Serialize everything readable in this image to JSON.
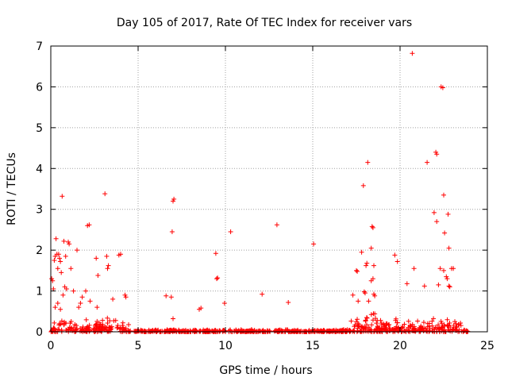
{
  "chart_data": {
    "type": "scatter",
    "title": "Day 105 of 2017, Rate Of TEC Index for receiver vars",
    "xlabel": "GPS time / hours",
    "ylabel": "ROTI / TECUs",
    "xlim": [
      0,
      25
    ],
    "ylim": [
      0,
      7
    ],
    "xticks": [
      "0",
      "5",
      "10",
      "15",
      "20",
      "25"
    ],
    "yticks": [
      "0",
      "1",
      "2",
      "3",
      "4",
      "5",
      "6",
      "7"
    ],
    "grid": true,
    "marker": "+",
    "marker_color": "#ff0000",
    "baseline_band": {
      "x_range": [
        0,
        23.9
      ],
      "typical_max": 0.1
    },
    "points": [
      [
        0.05,
        1.3
      ],
      [
        0.1,
        1.25
      ],
      [
        0.15,
        1.05
      ],
      [
        0.2,
        1.75
      ],
      [
        0.25,
        1.85
      ],
      [
        0.3,
        2.28
      ],
      [
        0.35,
        1.9
      ],
      [
        0.4,
        1.55
      ],
      [
        0.45,
        1.9
      ],
      [
        0.5,
        1.8
      ],
      [
        0.55,
        1.72
      ],
      [
        0.6,
        1.45
      ],
      [
        0.65,
        3.32
      ],
      [
        0.7,
        0.9
      ],
      [
        0.75,
        2.22
      ],
      [
        0.8,
        1.1
      ],
      [
        0.85,
        1.85
      ],
      [
        0.9,
        1.05
      ],
      [
        1.0,
        2.2
      ],
      [
        1.05,
        2.15
      ],
      [
        1.15,
        1.55
      ],
      [
        0.25,
        0.6
      ],
      [
        0.4,
        0.7
      ],
      [
        0.55,
        0.55
      ],
      [
        1.3,
        1.0
      ],
      [
        1.5,
        2.0
      ],
      [
        1.6,
        0.6
      ],
      [
        1.7,
        0.7
      ],
      [
        1.8,
        0.85
      ],
      [
        2.0,
        1.0
      ],
      [
        2.1,
        2.6
      ],
      [
        2.2,
        2.62
      ],
      [
        2.25,
        0.75
      ],
      [
        2.6,
        1.8
      ],
      [
        2.7,
        1.38
      ],
      [
        2.65,
        0.6
      ],
      [
        3.1,
        3.38
      ],
      [
        3.2,
        1.85
      ],
      [
        3.25,
        1.55
      ],
      [
        3.3,
        1.62
      ],
      [
        3.55,
        0.8
      ],
      [
        3.9,
        1.88
      ],
      [
        4.0,
        1.9
      ],
      [
        4.25,
        0.9
      ],
      [
        4.3,
        0.85
      ],
      [
        6.6,
        0.88
      ],
      [
        6.9,
        0.85
      ],
      [
        6.95,
        2.45
      ],
      [
        7.0,
        3.2
      ],
      [
        7.05,
        3.25
      ],
      [
        7.0,
        0.32
      ],
      [
        8.5,
        0.55
      ],
      [
        8.6,
        0.58
      ],
      [
        9.45,
        1.92
      ],
      [
        9.5,
        1.3
      ],
      [
        9.55,
        1.32
      ],
      [
        9.95,
        0.7
      ],
      [
        10.3,
        2.45
      ],
      [
        12.1,
        0.92
      ],
      [
        12.95,
        2.62
      ],
      [
        13.6,
        0.72
      ],
      [
        15.05,
        2.15
      ],
      [
        17.3,
        0.9
      ],
      [
        17.5,
        1.5
      ],
      [
        17.55,
        1.48
      ],
      [
        17.6,
        0.75
      ],
      [
        17.8,
        1.95
      ],
      [
        17.9,
        3.58
      ],
      [
        17.95,
        0.98
      ],
      [
        18.0,
        0.95
      ],
      [
        18.05,
        1.62
      ],
      [
        18.1,
        1.68
      ],
      [
        18.15,
        4.15
      ],
      [
        18.2,
        0.75
      ],
      [
        18.35,
        2.05
      ],
      [
        18.35,
        1.25
      ],
      [
        18.4,
        2.58
      ],
      [
        18.45,
        2.55
      ],
      [
        18.45,
        1.3
      ],
      [
        18.5,
        0.92
      ],
      [
        18.55,
        0.88
      ],
      [
        18.5,
        1.62
      ],
      [
        19.7,
        1.88
      ],
      [
        19.85,
        1.72
      ],
      [
        20.4,
        1.18
      ],
      [
        20.7,
        6.82
      ],
      [
        20.8,
        1.55
      ],
      [
        21.4,
        1.12
      ],
      [
        21.55,
        4.15
      ],
      [
        21.95,
        2.92
      ],
      [
        22.05,
        4.4
      ],
      [
        22.1,
        4.35
      ],
      [
        22.1,
        2.7
      ],
      [
        22.2,
        1.15
      ],
      [
        22.3,
        1.55
      ],
      [
        22.35,
        6.0
      ],
      [
        22.45,
        5.98
      ],
      [
        22.5,
        3.35
      ],
      [
        22.55,
        2.42
      ],
      [
        22.5,
        1.5
      ],
      [
        22.65,
        1.35
      ],
      [
        22.7,
        1.3
      ],
      [
        22.75,
        2.88
      ],
      [
        22.8,
        2.05
      ],
      [
        22.8,
        1.12
      ],
      [
        22.85,
        1.1
      ],
      [
        22.95,
        1.55
      ],
      [
        23.05,
        1.55
      ]
    ]
  }
}
